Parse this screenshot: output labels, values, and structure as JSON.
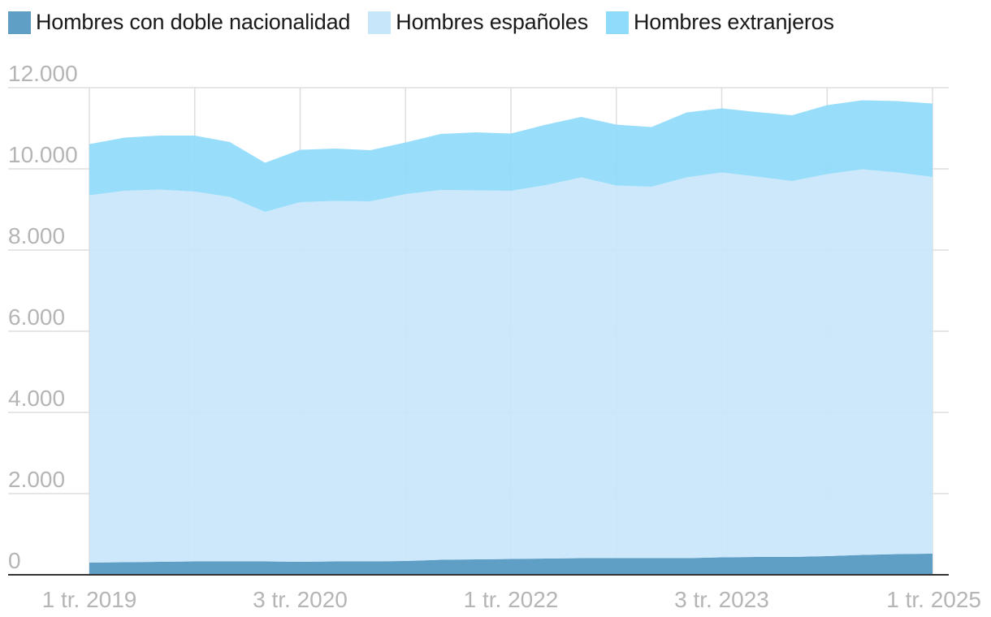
{
  "colors": {
    "doble": "#5f9fc6",
    "espanoles": "#c8e6fa",
    "extranjeros": "#8fdbfb",
    "grid": "#dedede",
    "axis": "#333333",
    "tick_text": "#b5b5b5"
  },
  "legend": [
    {
      "label": "Hombres con doble nacionalidad",
      "color_key": "doble"
    },
    {
      "label": "Hombres españoles",
      "color_key": "espanoles"
    },
    {
      "label": "Hombres extranjeros",
      "color_key": "extranjeros"
    }
  ],
  "chart_data": {
    "type": "area",
    "stacked": true,
    "title": "",
    "xlabel": "",
    "ylabel": "",
    "ylim": [
      0,
      12000
    ],
    "yticks": [
      0,
      2000,
      4000,
      6000,
      8000,
      10000,
      12000
    ],
    "ytick_labels": [
      "0",
      "2.000",
      "4.000",
      "6.000",
      "8.000",
      "10.000",
      "12.000"
    ],
    "x": [
      "1 tr. 2019",
      "2 tr. 2019",
      "3 tr. 2019",
      "4 tr. 2019",
      "1 tr. 2020",
      "2 tr. 2020",
      "3 tr. 2020",
      "4 tr. 2020",
      "1 tr. 2021",
      "2 tr. 2021",
      "3 tr. 2021",
      "4 tr. 2021",
      "1 tr. 2022",
      "2 tr. 2022",
      "3 tr. 2022",
      "4 tr. 2022",
      "1 tr. 2023",
      "2 tr. 2023",
      "3 tr. 2023",
      "4 tr. 2023",
      "1 tr. 2024",
      "2 tr. 2024",
      "3 tr. 2024",
      "4 tr. 2024",
      "1 tr. 2025"
    ],
    "xticks": [
      {
        "index": 0,
        "label": "1 tr. 2019"
      },
      {
        "index": 6,
        "label": "3 tr. 2020"
      },
      {
        "index": 12,
        "label": "1 tr. 2022"
      },
      {
        "index": 18,
        "label": "3 tr. 2023"
      },
      {
        "index": 24,
        "label": "1 tr. 2025"
      }
    ],
    "series": [
      {
        "name": "Hombres con doble nacionalidad",
        "color_key": "doble",
        "values": [
          300,
          310,
          320,
          330,
          330,
          330,
          320,
          330,
          330,
          340,
          370,
          380,
          390,
          400,
          410,
          410,
          410,
          410,
          430,
          440,
          440,
          460,
          490,
          510,
          520
        ]
      },
      {
        "name": "Hombres españoles",
        "color_key": "espanoles",
        "values": [
          9050,
          9150,
          9170,
          9110,
          8980,
          8610,
          8860,
          8880,
          8870,
          9040,
          9110,
          9090,
          9070,
          9200,
          9380,
          9180,
          9150,
          9380,
          9480,
          9370,
          9260,
          9410,
          9500,
          9400,
          9280
        ]
      },
      {
        "name": "Hombres extranjeros",
        "color_key": "extranjeros",
        "values": [
          1260,
          1310,
          1330,
          1380,
          1350,
          1210,
          1290,
          1290,
          1260,
          1270,
          1380,
          1430,
          1410,
          1490,
          1490,
          1500,
          1470,
          1600,
          1580,
          1590,
          1620,
          1700,
          1700,
          1760,
          1810
        ]
      }
    ]
  }
}
